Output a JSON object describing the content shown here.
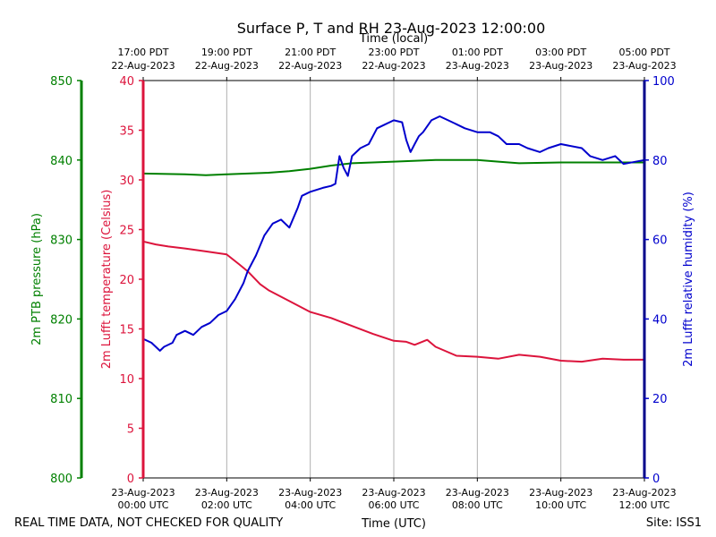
{
  "chart_data": {
    "type": "line",
    "title": "Surface P, T and RH 23-Aug-2023 12:00:00",
    "top_axis_label": "Time (local)",
    "xlabel": "Time (UTC)",
    "footer_left": "REAL TIME DATA, NOT CHECKED FOR QUALITY",
    "footer_right": "Site: ISS1",
    "xlim": [
      0,
      12
    ],
    "x_ticks": [
      {
        "hours": 0,
        "utc_date": "23-Aug-2023",
        "utc_time": "00:00 UTC",
        "local_time": "17:00 PDT",
        "local_date": "22-Aug-2023"
      },
      {
        "hours": 2,
        "utc_date": "23-Aug-2023",
        "utc_time": "02:00 UTC",
        "local_time": "19:00 PDT",
        "local_date": "22-Aug-2023"
      },
      {
        "hours": 4,
        "utc_date": "23-Aug-2023",
        "utc_time": "04:00 UTC",
        "local_time": "21:00 PDT",
        "local_date": "22-Aug-2023"
      },
      {
        "hours": 6,
        "utc_date": "23-Aug-2023",
        "utc_time": "06:00 UTC",
        "local_time": "23:00 PDT",
        "local_date": "22-Aug-2023"
      },
      {
        "hours": 8,
        "utc_date": "23-Aug-2023",
        "utc_time": "08:00 UTC",
        "local_time": "01:00 PDT",
        "local_date": "23-Aug-2023"
      },
      {
        "hours": 10,
        "utc_date": "23-Aug-2023",
        "utc_time": "10:00 UTC",
        "local_time": "03:00 PDT",
        "local_date": "23-Aug-2023"
      },
      {
        "hours": 12,
        "utc_date": "23-Aug-2023",
        "utc_time": "12:00 UTC",
        "local_time": "05:00 PDT",
        "local_date": "23-Aug-2023"
      }
    ],
    "axes": {
      "pressure": {
        "label": "2m PTB pressure (hPa)",
        "range": [
          800,
          850
        ],
        "ticks": [
          800,
          810,
          820,
          830,
          840,
          850
        ],
        "color": "#008000"
      },
      "temperature": {
        "label": "2m Lufft temperature (Celsius)",
        "range": [
          0,
          40
        ],
        "ticks": [
          0,
          5,
          10,
          15,
          20,
          25,
          30,
          35,
          40
        ],
        "color": "#dc143c"
      },
      "humidity": {
        "label": "2m Lufft relative humidity (%)",
        "range": [
          0,
          100
        ],
        "ticks": [
          0,
          20,
          40,
          60,
          80,
          100
        ],
        "color": "#0000cd"
      }
    },
    "series": [
      {
        "name": "2m PTB pressure (hPa)",
        "axis": "pressure",
        "color": "#008000",
        "x": [
          0,
          1,
          1.5,
          2,
          3,
          3.5,
          4,
          4.5,
          5,
          6,
          7,
          8,
          8.5,
          9,
          10,
          11,
          12
        ],
        "y": [
          838.3,
          838.2,
          838.1,
          838.2,
          838.4,
          838.6,
          838.9,
          839.3,
          839.6,
          839.8,
          840.0,
          840.0,
          839.8,
          839.6,
          839.7,
          839.7,
          839.7
        ]
      },
      {
        "name": "2m Lufft temperature (Celsius)",
        "axis": "temperature",
        "color": "#dc143c",
        "x": [
          0,
          0.3,
          0.6,
          1.0,
          1.5,
          2.0,
          2.3,
          2.5,
          2.8,
          3.0,
          3.5,
          4.0,
          4.5,
          5.0,
          5.5,
          6.0,
          6.3,
          6.5,
          6.8,
          7.0,
          7.5,
          8.0,
          8.5,
          9.0,
          9.5,
          10.0,
          10.5,
          11.0,
          11.5,
          12.0
        ],
        "y": [
          23.8,
          23.5,
          23.3,
          23.1,
          22.8,
          22.5,
          21.5,
          20.8,
          19.5,
          18.9,
          17.8,
          16.7,
          16.1,
          15.3,
          14.5,
          13.8,
          13.7,
          13.4,
          13.9,
          13.2,
          12.3,
          12.2,
          12.0,
          12.4,
          12.2,
          11.8,
          11.7,
          12.0,
          11.9,
          11.9
        ]
      },
      {
        "name": "2m Lufft relative humidity (%)",
        "axis": "humidity",
        "color": "#0000cd",
        "x": [
          0,
          0.2,
          0.4,
          0.5,
          0.7,
          0.8,
          1.0,
          1.2,
          1.4,
          1.6,
          1.8,
          2.0,
          2.2,
          2.4,
          2.5,
          2.7,
          2.9,
          3.1,
          3.3,
          3.5,
          3.7,
          3.8,
          4.0,
          4.3,
          4.5,
          4.6,
          4.7,
          4.8,
          4.9,
          5.0,
          5.2,
          5.4,
          5.6,
          5.8,
          6.0,
          6.2,
          6.3,
          6.4,
          6.5,
          6.6,
          6.7,
          6.9,
          7.1,
          7.3,
          7.5,
          7.7,
          8.0,
          8.3,
          8.5,
          8.7,
          9.0,
          9.2,
          9.5,
          9.7,
          10.0,
          10.5,
          10.7,
          11.0,
          11.3,
          11.5,
          12.0
        ],
        "y": [
          35,
          34,
          32,
          33,
          34,
          36,
          37,
          36,
          38,
          39,
          41,
          42,
          45,
          49,
          52,
          56,
          61,
          64,
          65,
          63,
          68,
          71,
          72,
          73,
          73.5,
          74,
          81,
          78,
          76,
          81,
          83,
          84,
          88,
          89,
          90,
          89.5,
          85,
          82,
          84,
          86,
          87,
          90,
          91,
          90,
          89,
          88,
          87,
          87,
          86,
          84,
          84,
          83,
          82,
          83,
          84,
          83,
          81,
          80,
          81,
          79,
          80
        ]
      }
    ]
  }
}
